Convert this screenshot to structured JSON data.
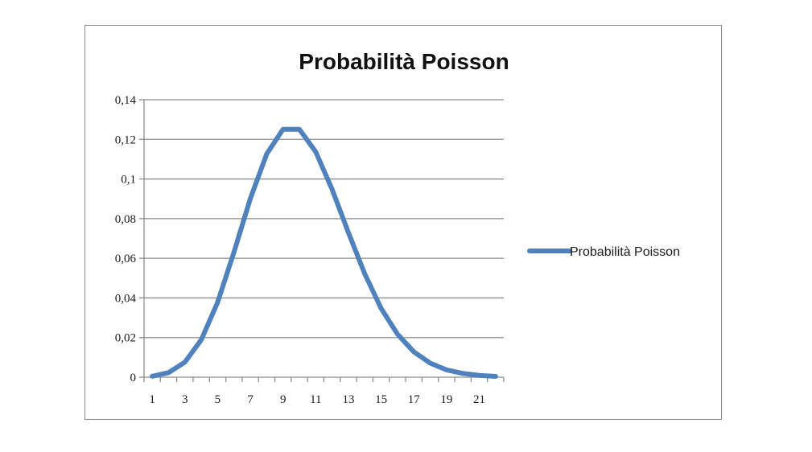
{
  "chart_data": {
    "type": "line",
    "title": "Probabilità Poisson",
    "xlabel": "",
    "ylabel": "",
    "x": [
      1,
      2,
      3,
      4,
      5,
      6,
      7,
      8,
      9,
      10,
      11,
      12,
      13,
      14,
      15,
      16,
      17,
      18,
      19,
      20,
      21,
      22
    ],
    "x_tick_labels": [
      "1",
      "3",
      "5",
      "7",
      "9",
      "11",
      "13",
      "15",
      "17",
      "19",
      "21"
    ],
    "y_tick_labels": [
      "0",
      "0,02",
      "0,04",
      "0,06",
      "0,08",
      "0,1",
      "0,12",
      "0,14"
    ],
    "ylim": [
      0,
      0.14
    ],
    "grid": true,
    "legend_position": "right",
    "series": [
      {
        "name": "Probabilità Poisson",
        "color": "#4f81bd",
        "values": [
          0.0005,
          0.0023,
          0.0076,
          0.0189,
          0.0378,
          0.0631,
          0.0901,
          0.1126,
          0.1251,
          0.1251,
          0.1137,
          0.0948,
          0.0729,
          0.0521,
          0.0347,
          0.0217,
          0.0128,
          0.0071,
          0.0037,
          0.0019,
          0.0009,
          0.0004
        ]
      }
    ]
  }
}
